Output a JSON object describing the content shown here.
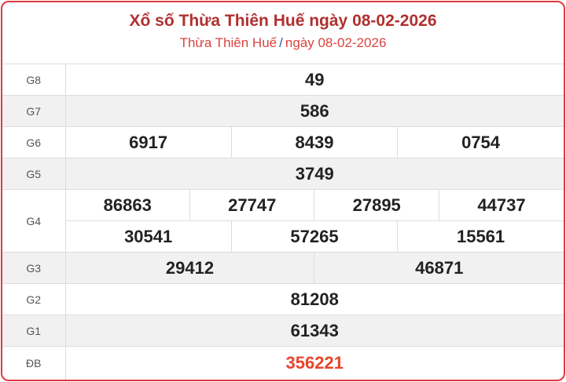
{
  "header": {
    "title": "Xổ số Thừa Thiên Huế ngày 08-02-2026",
    "breadcrumb": {
      "province": "Thừa Thiên Huế",
      "separator": "/",
      "date": "ngày 08-02-2026"
    }
  },
  "prizes": {
    "G8": {
      "label": "G8",
      "numbers": [
        "49"
      ]
    },
    "G7": {
      "label": "G7",
      "numbers": [
        "586"
      ]
    },
    "G6": {
      "label": "G6",
      "numbers": [
        "6917",
        "8439",
        "0754"
      ]
    },
    "G5": {
      "label": "G5",
      "numbers": [
        "3749"
      ]
    },
    "G4": {
      "label": "G4",
      "numbers": [
        "86863",
        "27747",
        "27895",
        "44737",
        "30541",
        "57265",
        "15561"
      ]
    },
    "G3": {
      "label": "G3",
      "numbers": [
        "29412",
        "46871"
      ]
    },
    "G2": {
      "label": "G2",
      "numbers": [
        "81208"
      ]
    },
    "G1": {
      "label": "G1",
      "numbers": [
        "61343"
      ]
    },
    "DB": {
      "label": "ĐB",
      "numbers": [
        "356221"
      ]
    }
  },
  "colors": {
    "title": "#b0302f",
    "special": "#e8452c",
    "border": "#e0393e"
  }
}
